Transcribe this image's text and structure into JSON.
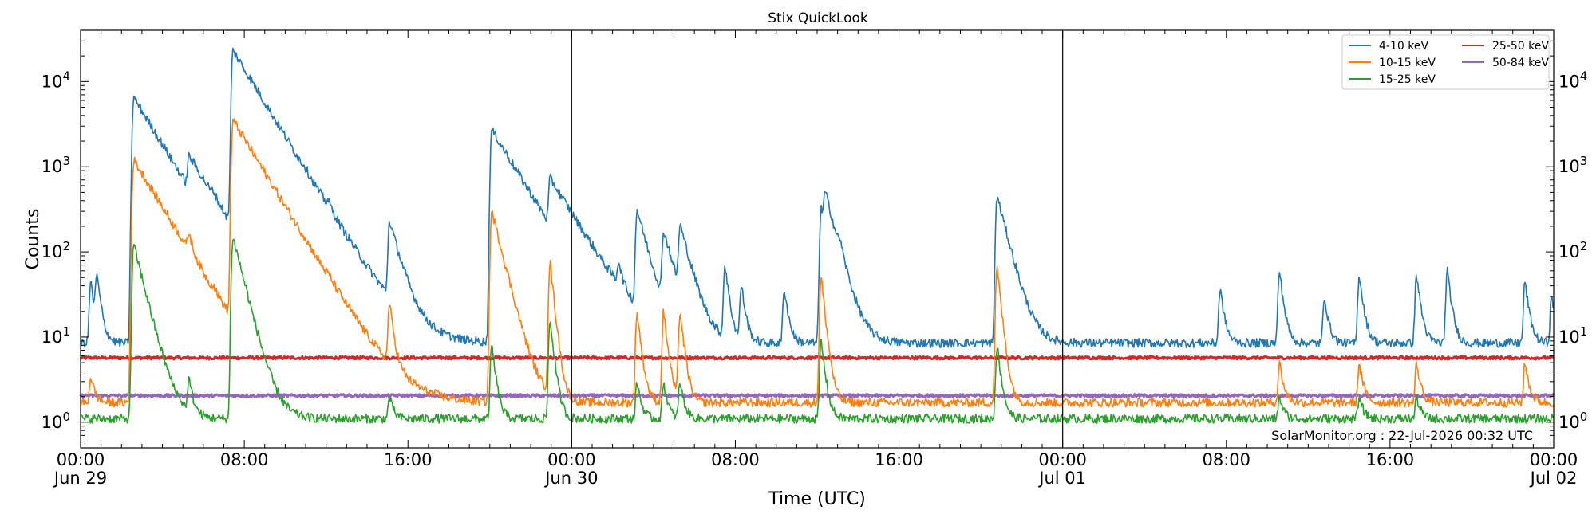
{
  "chart_data": {
    "type": "line",
    "title": "Stix QuickLook",
    "xlabel": "Time (UTC)",
    "ylabel": "Counts",
    "yscale": "log",
    "ylim": [
      0.5,
      40000
    ],
    "xlim": [
      0,
      72
    ],
    "grid": false,
    "legend_position": "top-right",
    "day_dividers": [
      24,
      48
    ],
    "x_ticks": [
      {
        "pos": 0,
        "time": "00:00",
        "date": "Jun 29"
      },
      {
        "pos": 8,
        "time": "08:00",
        "date": ""
      },
      {
        "pos": 16,
        "time": "16:00",
        "date": ""
      },
      {
        "pos": 24,
        "time": "00:00",
        "date": "Jun 30"
      },
      {
        "pos": 32,
        "time": "08:00",
        "date": ""
      },
      {
        "pos": 40,
        "time": "16:00",
        "date": ""
      },
      {
        "pos": 48,
        "time": "00:00",
        "date": "Jul 01"
      },
      {
        "pos": 56,
        "time": "08:00",
        "date": ""
      },
      {
        "pos": 64,
        "time": "16:00",
        "date": ""
      },
      {
        "pos": 72,
        "time": "00:00",
        "date": "Jul 02"
      }
    ],
    "y_ticks": [
      {
        "value": 1,
        "mantissa": "10",
        "exponent": "0"
      },
      {
        "value": 10,
        "mantissa": "10",
        "exponent": "1"
      },
      {
        "value": 100,
        "mantissa": "10",
        "exponent": "2"
      },
      {
        "value": 1000,
        "mantissa": "10",
        "exponent": "3"
      },
      {
        "value": 10000,
        "mantissa": "10",
        "exponent": "4"
      }
    ],
    "series": [
      {
        "name": "4-10 keV",
        "color": "#1f77b4",
        "baseline": 8.5,
        "peaks": [
          [
            0.5,
            45
          ],
          [
            0.8,
            48
          ],
          [
            2.6,
            6500
          ],
          [
            5.3,
            800
          ],
          [
            6.5,
            70
          ],
          [
            7.45,
            23000
          ],
          [
            10.9,
            75
          ],
          [
            12.1,
            72
          ],
          [
            15.1,
            210
          ],
          [
            20.1,
            2700
          ],
          [
            22.95,
            530
          ],
          [
            26.3,
            45
          ],
          [
            27.2,
            300
          ],
          [
            28.5,
            160
          ],
          [
            29.3,
            180
          ],
          [
            31.5,
            70
          ],
          [
            32.3,
            40
          ],
          [
            34.4,
            37
          ],
          [
            36.2,
            320
          ],
          [
            36.4,
            310
          ],
          [
            37.1,
            45
          ],
          [
            44.8,
            450
          ],
          [
            55.7,
            37
          ],
          [
            58.6,
            60
          ],
          [
            60.8,
            30
          ],
          [
            62.5,
            55
          ],
          [
            65.3,
            55
          ],
          [
            66.8,
            60
          ],
          [
            70.6,
            45
          ],
          [
            71.9,
            30
          ]
        ]
      },
      {
        "name": "10-15 keV",
        "color": "#ff7f0e",
        "baseline": 1.7,
        "peaks": [
          [
            0.5,
            3.5
          ],
          [
            2.6,
            1200
          ],
          [
            5.3,
            70
          ],
          [
            6.5,
            7
          ],
          [
            7.45,
            3500
          ],
          [
            10.9,
            5
          ],
          [
            12.1,
            5
          ],
          [
            15.1,
            22
          ],
          [
            20.1,
            300
          ],
          [
            22.95,
            75
          ],
          [
            27.2,
            20
          ],
          [
            28.5,
            20
          ],
          [
            29.3,
            20
          ],
          [
            36.2,
            50
          ],
          [
            44.8,
            65
          ],
          [
            58.6,
            5
          ],
          [
            62.5,
            5
          ],
          [
            65.3,
            5
          ],
          [
            70.6,
            5
          ]
        ]
      },
      {
        "name": "15-25 keV",
        "color": "#2ca02c",
        "baseline": 1.1,
        "peaks": [
          [
            2.6,
            120
          ],
          [
            5.3,
            3
          ],
          [
            7.45,
            150
          ],
          [
            15.1,
            2
          ],
          [
            20.1,
            8
          ],
          [
            22.95,
            16
          ],
          [
            27.2,
            3
          ],
          [
            28.5,
            3
          ],
          [
            29.3,
            3
          ],
          [
            36.2,
            9
          ],
          [
            44.8,
            8
          ],
          [
            58.6,
            2
          ],
          [
            62.5,
            2
          ],
          [
            65.3,
            2
          ]
        ]
      },
      {
        "name": "25-50 keV",
        "color": "#d62728",
        "baseline": 5.7,
        "peaks": []
      },
      {
        "name": "50-84 keV",
        "color": "#9467bd",
        "baseline": 2.05,
        "peaks": []
      }
    ]
  },
  "credit": "SolarMonitor.org : 22-Jul-2026 00:32 UTC"
}
